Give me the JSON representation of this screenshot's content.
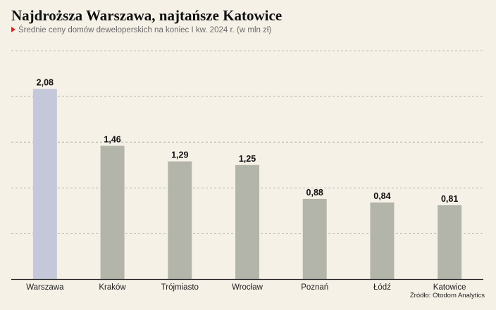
{
  "header": {
    "title": "Najdroższa Warszawa, najtańsze Katowice",
    "subtitle": "Średnie ceny domów deweloperskich na koniec I kw. 2024 r. (w mln zł)"
  },
  "footer": {
    "source": "Źródło: Otodom Analytics"
  },
  "colors": {
    "highlight": "#c5c8db",
    "bar": "#b4b5aa",
    "grid": "#a9a9a9",
    "accent": "#d9261c"
  },
  "chart_data": {
    "type": "bar",
    "categories": [
      "Warszawa",
      "Kraków",
      "Trójmiasto",
      "Wrocław",
      "Poznań",
      "Łódź",
      "Katowice"
    ],
    "values": [
      2.08,
      1.46,
      1.29,
      1.25,
      0.88,
      0.84,
      0.81
    ],
    "value_labels": [
      "2,08",
      "1,46",
      "1,29",
      "1,25",
      "0,88",
      "0,84",
      "0,81"
    ],
    "highlight_category": "Warszawa",
    "ylim": [
      0,
      2.5
    ],
    "grid": true
  }
}
